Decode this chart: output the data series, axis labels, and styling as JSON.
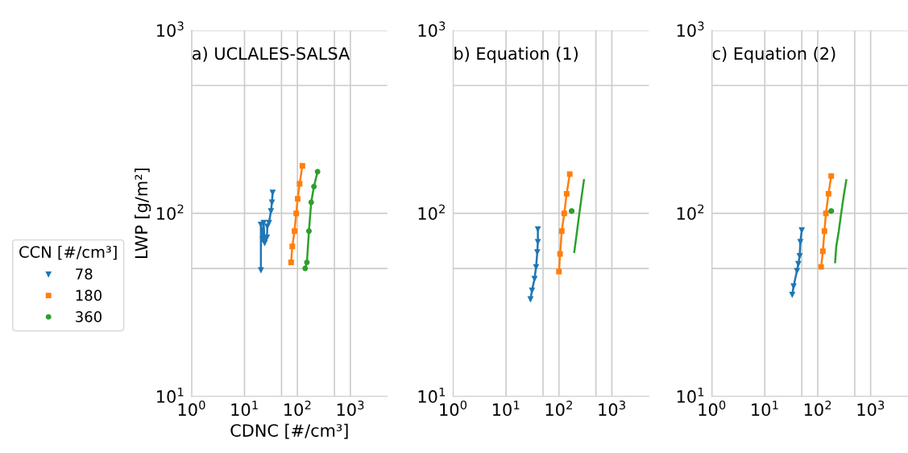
{
  "chart_data": [
    {
      "type": "line",
      "title": "a) UCLALES-SALSA",
      "xlabel": "CDNC [#/cm³]",
      "ylabel": "LWP [g/m²]",
      "log": "xy",
      "grid": true,
      "legend": "left",
      "legend_title": "CCN [#/cm³]",
      "xlim": [
        1,
        5000
      ],
      "ylim": [
        10,
        1000
      ],
      "xticks": [
        {
          "value": 1,
          "label": "10$^{0}$"
        },
        {
          "value": 10,
          "label": "10$^{1}$"
        },
        {
          "value": 50,
          "label": null
        },
        {
          "value": 100,
          "label": "10$^{2}$"
        },
        {
          "value": 500,
          "label": null
        },
        {
          "value": 1000,
          "label": "10$^{3}$"
        }
      ],
      "yticks": [
        {
          "value": 10,
          "label": "10$^{1}$"
        },
        {
          "value": 50,
          "label": null
        },
        {
          "value": 100,
          "label": "10$^{2}$"
        },
        {
          "value": 500,
          "label": null
        },
        {
          "value": 1000,
          "label": "10$^{3}$"
        }
      ],
      "series": [
        {
          "name": "78",
          "color": "#1f77b4",
          "marker": "triangle",
          "x": [
            20.4,
            20.4,
            22,
            23,
            24,
            26.5,
            27,
            29,
            31.6,
            33,
            34
          ],
          "values": [
            49,
            87,
            72,
            89,
            69,
            74,
            85,
            89,
            103,
            115,
            130
          ]
        },
        {
          "name": "180",
          "color": "#ff7f0e",
          "marker": "square",
          "x": [
            76,
            80,
            88,
            95,
            101,
            110,
            124
          ],
          "values": [
            54,
            66,
            80,
            100,
            120,
            145,
            182
          ]
        },
        {
          "name": "360",
          "color": "#2ca02c",
          "marker": "circle",
          "x": [
            140,
            151,
            165,
            182,
            205,
            240
          ],
          "values": [
            50,
            54,
            80,
            115,
            140,
            169
          ]
        }
      ]
    },
    {
      "type": "line",
      "title": "b) Equation (1)",
      "log": "xy",
      "grid": true,
      "xlim": [
        1,
        5000
      ],
      "ylim": [
        10,
        1000
      ],
      "xticks": [
        {
          "value": 1,
          "label": "10$^{0}$"
        },
        {
          "value": 10,
          "label": "10$^{1}$"
        },
        {
          "value": 50,
          "label": null
        },
        {
          "value": 100,
          "label": "10$^{2}$"
        },
        {
          "value": 500,
          "label": null
        },
        {
          "value": 1000,
          "label": "10$^{3}$"
        }
      ],
      "yticks": [
        {
          "value": 10,
          "label": "10$^{1}$"
        },
        {
          "value": 50,
          "label": null
        },
        {
          "value": 100,
          "label": "10$^{2}$"
        },
        {
          "value": 500,
          "label": null
        },
        {
          "value": 1000,
          "label": "10$^{3}$"
        }
      ],
      "series": [
        {
          "color": "#1f77b4",
          "marker": "triangle",
          "x": [
            29,
            31,
            34.6,
            37,
            39,
            40,
            40
          ],
          "values": [
            34,
            38,
            44,
            51,
            61.5,
            70,
            82
          ]
        },
        {
          "color": "#ff7f0e",
          "marker": "square",
          "x": [
            100,
            105,
            113,
            126,
            140,
            160
          ],
          "values": [
            48,
            60,
            80,
            100,
            128,
            164
          ]
        },
        {
          "color": "#2ca02c",
          "marker": "circle",
          "type": "scatter",
          "x": [
            174
          ],
          "values": [
            103
          ]
        },
        {
          "color": "#2ca02c",
          "marker": "none",
          "x": [
            195,
            220,
            241,
            270,
            297
          ],
          "values": [
            61.5,
            80,
            98,
            125,
            152
          ]
        }
      ]
    },
    {
      "type": "line",
      "title": "c) Equation (2)",
      "log": "xy",
      "grid": true,
      "xlim": [
        1,
        5000
      ],
      "ylim": [
        10,
        1000
      ],
      "xticks": [
        {
          "value": 1,
          "label": "10$^{0}$"
        },
        {
          "value": 10,
          "label": "10$^{1}$"
        },
        {
          "value": 50,
          "label": null
        },
        {
          "value": 100,
          "label": "10$^{2}$"
        },
        {
          "value": 500,
          "label": null
        },
        {
          "value": 1000,
          "label": "10$^{3}$"
        }
      ],
      "yticks": [
        {
          "value": 10,
          "label": "10$^{1}$"
        },
        {
          "value": 50,
          "label": null
        },
        {
          "value": 100,
          "label": "10$^{2}$"
        },
        {
          "value": 500,
          "label": null
        },
        {
          "value": 1000,
          "label": "10$^{3}$"
        }
      ],
      "series": [
        {
          "color": "#1f77b4",
          "marker": "triangle",
          "x": [
            33,
            35,
            40.6,
            43,
            45.6,
            47,
            50
          ],
          "values": [
            36,
            40,
            48.6,
            53,
            58.5,
            70,
            81
          ]
        },
        {
          "color": "#ff7f0e",
          "marker": "square",
          "x": [
            116,
            125,
            134,
            143,
            160,
            180
          ],
          "values": [
            51,
            62,
            80,
            100,
            128,
            160
          ]
        },
        {
          "color": "#2ca02c",
          "marker": "circle",
          "type": "scatter",
          "x": [
            180
          ],
          "values": [
            103
          ]
        },
        {
          "color": "#2ca02c",
          "marker": "none",
          "x": [
            213,
            224,
            250,
            275,
            310,
            347
          ],
          "values": [
            54,
            66,
            80,
            98,
            125,
            152
          ]
        }
      ]
    }
  ]
}
